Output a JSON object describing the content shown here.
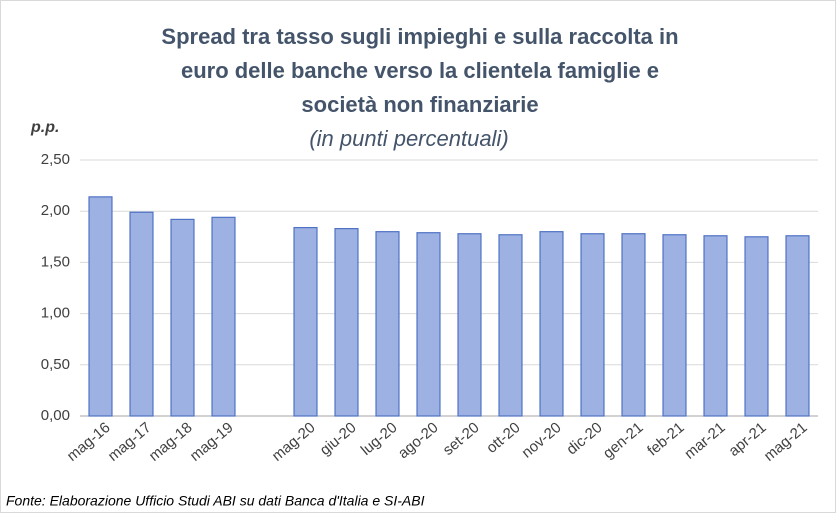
{
  "chart_data": {
    "type": "bar",
    "title": [
      "Spread tra tasso sugli impieghi e sulla raccolta in",
      "euro delle banche verso la clientela famiglie e",
      "società non finanziarie"
    ],
    "subtitle": "(in punti percentuali)",
    "y_label": "p.p.",
    "source": "Fonte: Elaborazione Ufficio Studi ABI su dati Banca d'Italia e SI-ABI",
    "categories": [
      "mag-16",
      "mag-17",
      "mag-18",
      "mag-19",
      null,
      "mag-20",
      "giu-20",
      "lug-20",
      "ago-20",
      "set-20",
      "ott-20",
      "nov-20",
      "dic-20",
      "gen-21",
      "feb-21",
      "mar-21",
      "apr-21",
      "mag-21"
    ],
    "values": [
      2.14,
      1.99,
      1.92,
      1.94,
      null,
      1.84,
      1.83,
      1.8,
      1.79,
      1.78,
      1.77,
      1.8,
      1.78,
      1.78,
      1.77,
      1.76,
      1.75,
      1.76
    ],
    "color": "#9db1e3",
    "ylim": [
      0,
      2.5
    ],
    "yticks": [
      {
        "value": 0,
        "label": "0,00"
      },
      {
        "value": 0.5,
        "label": "0,50"
      },
      {
        "value": 1,
        "label": "1,00"
      },
      {
        "value": 1.5,
        "label": "1,50"
      },
      {
        "value": 2,
        "label": "2,00"
      },
      {
        "value": 2.5,
        "label": "2,50"
      }
    ],
    "grid": true
  }
}
